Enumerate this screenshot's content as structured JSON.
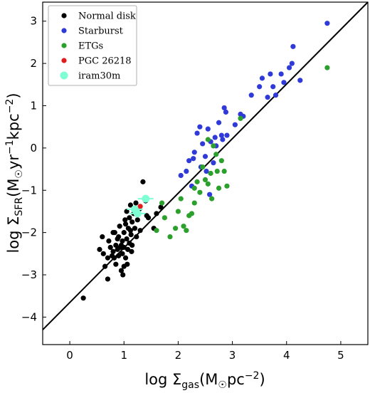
{
  "chart_data": {
    "type": "scatter",
    "xlabel": "log Σ_gas(M☉pc⁻²)",
    "ylabel": "log Σ_SFR(M☉yr⁻¹kpc⁻²)",
    "xlim": [
      -0.5,
      5.5
    ],
    "ylim": [
      -4.65,
      3.45
    ],
    "x_ticks": [
      0,
      1,
      2,
      3,
      4,
      5
    ],
    "y_ticks": [
      -4,
      -3,
      -2,
      -1,
      0,
      1,
      2,
      3
    ],
    "grid": false,
    "legend_position": "top-left",
    "fit_line": {
      "x": [
        -0.5,
        5.5
      ],
      "y": [
        -4.3,
        3.45
      ],
      "color": "#000000"
    },
    "series": [
      {
        "name": "Normal disk",
        "color": "#000000",
        "points": [
          [
            0.25,
            -3.55
          ],
          [
            0.55,
            -2.4
          ],
          [
            0.6,
            -2.1
          ],
          [
            0.62,
            -2.5
          ],
          [
            0.65,
            -2.8
          ],
          [
            0.7,
            -3.1
          ],
          [
            0.7,
            -2.6
          ],
          [
            0.72,
            -2.2
          ],
          [
            0.75,
            -2.35
          ],
          [
            0.78,
            -2.55
          ],
          [
            0.8,
            -2.45
          ],
          [
            0.8,
            -2.0
          ],
          [
            0.82,
            -2.6
          ],
          [
            0.85,
            -2.3
          ],
          [
            0.85,
            -2.75
          ],
          [
            0.88,
            -2.4
          ],
          [
            0.9,
            -2.1
          ],
          [
            0.9,
            -2.55
          ],
          [
            0.92,
            -1.85
          ],
          [
            0.95,
            -2.3
          ],
          [
            0.95,
            -2.9
          ],
          [
            0.97,
            -2.5
          ],
          [
            1.0,
            -2.0
          ],
          [
            1.0,
            -2.35
          ],
          [
            1.02,
            -1.7
          ],
          [
            1.03,
            -2.6
          ],
          [
            1.05,
            -2.15
          ],
          [
            1.05,
            -1.5
          ],
          [
            1.07,
            -2.4
          ],
          [
            1.08,
            -1.9
          ],
          [
            1.1,
            -1.65
          ],
          [
            1.1,
            -2.25
          ],
          [
            1.12,
            -1.35
          ],
          [
            1.13,
            -2.05
          ],
          [
            1.15,
            -1.75
          ],
          [
            1.15,
            -2.3
          ],
          [
            1.18,
            -1.55
          ],
          [
            1.2,
            -1.9
          ],
          [
            1.22,
            -1.3
          ],
          [
            1.25,
            -1.7
          ],
          [
            1.28,
            -1.45
          ],
          [
            1.3,
            -1.95
          ],
          [
            1.35,
            -0.8
          ],
          [
            1.4,
            -1.25
          ],
          [
            1.42,
            -1.6
          ],
          [
            1.45,
            -1.65
          ],
          [
            1.55,
            -1.9
          ],
          [
            1.6,
            -1.55
          ],
          [
            1.68,
            -1.4
          ],
          [
            0.93,
            -2.35
          ],
          [
            0.98,
            -3.0
          ],
          [
            1.06,
            -2.75
          ],
          [
            0.88,
            -2.15
          ],
          [
            1.14,
            -2.45
          ],
          [
            1.03,
            -1.8
          ],
          [
            0.97,
            -2.2
          ],
          [
            1.23,
            -2.1
          ],
          [
            0.83,
            -2.0
          ],
          [
            1.12,
            -1.95
          ],
          [
            1.0,
            -2.8
          ]
        ]
      },
      {
        "name": "Starburst",
        "color": "#2f3ad8",
        "points": [
          [
            2.05,
            -0.65
          ],
          [
            2.15,
            -0.55
          ],
          [
            2.2,
            -0.3
          ],
          [
            2.25,
            -0.9
          ],
          [
            2.28,
            -0.25
          ],
          [
            2.3,
            -0.1
          ],
          [
            2.35,
            0.35
          ],
          [
            2.4,
            0.5
          ],
          [
            2.42,
            -0.45
          ],
          [
            2.45,
            0.1
          ],
          [
            2.5,
            -0.2
          ],
          [
            2.52,
            -0.55
          ],
          [
            2.55,
            0.45
          ],
          [
            2.58,
            -1.1
          ],
          [
            2.6,
            0.15
          ],
          [
            2.65,
            -0.35
          ],
          [
            2.68,
            0.25
          ],
          [
            2.7,
            0.05
          ],
          [
            2.75,
            0.6
          ],
          [
            2.8,
            0.3
          ],
          [
            2.82,
            0.2
          ],
          [
            2.85,
            0.95
          ],
          [
            2.88,
            0.85
          ],
          [
            2.9,
            0.3
          ],
          [
            3.05,
            0.55
          ],
          [
            3.15,
            0.8
          ],
          [
            3.2,
            0.75
          ],
          [
            3.35,
            1.25
          ],
          [
            3.5,
            1.45
          ],
          [
            3.55,
            1.65
          ],
          [
            3.65,
            1.2
          ],
          [
            3.7,
            1.75
          ],
          [
            3.75,
            1.45
          ],
          [
            3.8,
            1.25
          ],
          [
            3.9,
            1.75
          ],
          [
            3.95,
            1.55
          ],
          [
            4.05,
            1.9
          ],
          [
            4.1,
            2.0
          ],
          [
            4.12,
            2.4
          ],
          [
            4.25,
            1.6
          ],
          [
            4.75,
            2.95
          ]
        ]
      },
      {
        "name": "ETGs",
        "color": "#2ca02c",
        "points": [
          [
            1.6,
            -1.95
          ],
          [
            1.7,
            -1.3
          ],
          [
            1.75,
            -1.65
          ],
          [
            1.85,
            -2.1
          ],
          [
            1.95,
            -1.9
          ],
          [
            2.0,
            -1.5
          ],
          [
            2.05,
            -1.2
          ],
          [
            2.1,
            -1.85
          ],
          [
            2.15,
            -1.95
          ],
          [
            2.2,
            -1.6
          ],
          [
            2.25,
            -1.55
          ],
          [
            2.3,
            -1.3
          ],
          [
            2.35,
            -0.8
          ],
          [
            2.4,
            -1.05
          ],
          [
            2.45,
            -0.45
          ],
          [
            2.5,
            -0.75
          ],
          [
            2.55,
            -0.85
          ],
          [
            2.6,
            -0.6
          ],
          [
            2.65,
            0.05
          ],
          [
            2.7,
            -0.15
          ],
          [
            2.75,
            -0.95
          ],
          [
            2.8,
            -0.3
          ],
          [
            2.85,
            -0.55
          ],
          [
            2.9,
            -0.9
          ],
          [
            3.15,
            0.7
          ],
          [
            2.3,
            -0.95
          ],
          [
            4.75,
            1.9
          ],
          [
            2.55,
            0.2
          ],
          [
            2.72,
            -0.55
          ],
          [
            2.62,
            -1.2
          ]
        ]
      },
      {
        "name": "PGC 26218",
        "color": "#e41a1c",
        "points": [
          [
            1.3,
            -1.38
          ]
        ]
      },
      {
        "name": "iram30m",
        "color": "#7fffd4",
        "points": [
          [
            1.2,
            -1.45
          ],
          [
            1.25,
            -1.55
          ],
          [
            1.4,
            -1.2
          ]
        ]
      }
    ]
  }
}
